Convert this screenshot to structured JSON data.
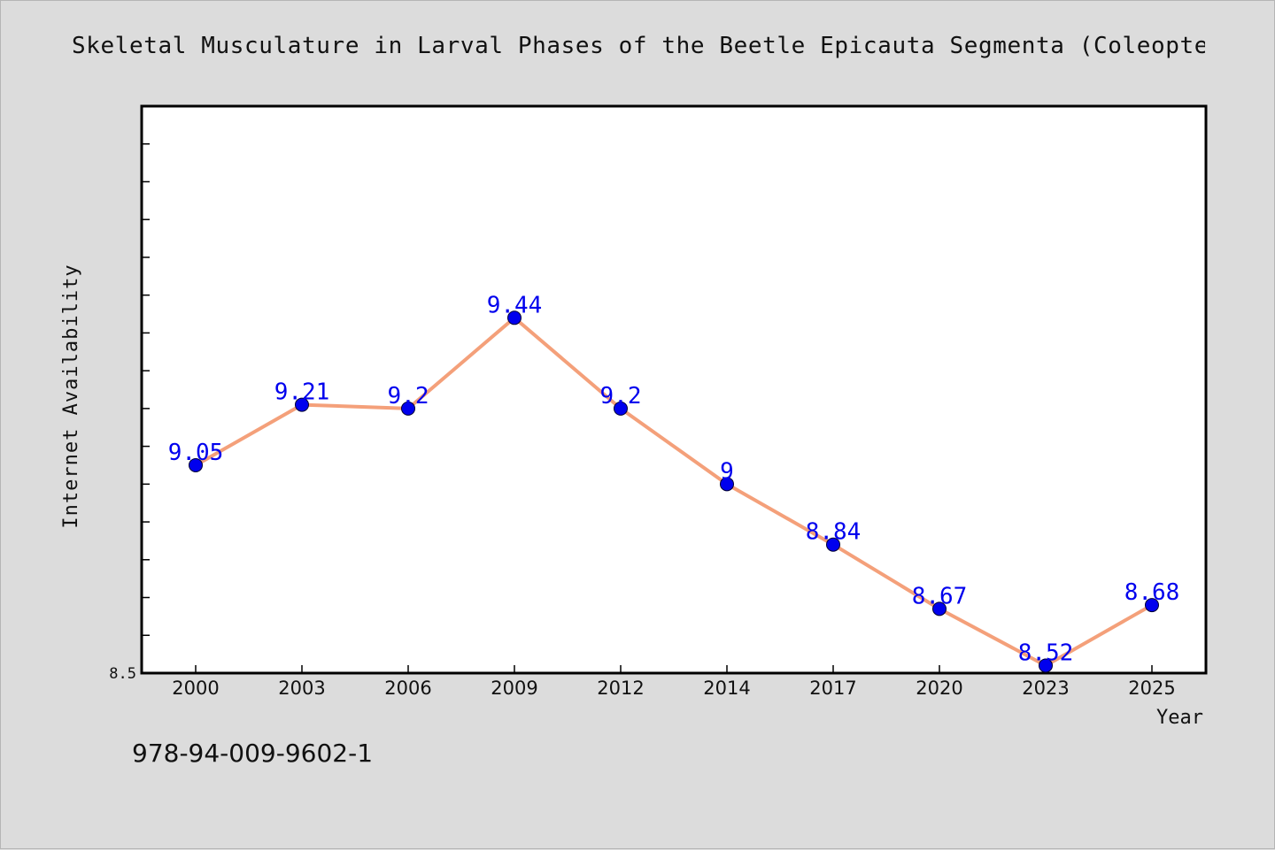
{
  "chart_data": {
    "type": "line",
    "title": "Skeletal Musculature in Larval Phases of the Beetle Epicauta Segmenta (Coleopter",
    "xlabel": "Year",
    "ylabel": "Internet Availability",
    "categories": [
      "2000",
      "2003",
      "2006",
      "2009",
      "2012",
      "2014",
      "2017",
      "2020",
      "2023",
      "2025"
    ],
    "series": [
      {
        "values": [
          9.05,
          9.21,
          9.2,
          9.44,
          9.2,
          9,
          8.84,
          8.67,
          8.52,
          8.68
        ],
        "data_labels": [
          "9.05",
          "9.21",
          "9.2",
          "9.44",
          "9.2",
          "9",
          "8.84",
          "8.67",
          "8.52",
          "8.68"
        ]
      }
    ],
    "ylim": [
      8.5,
      10.0
    ],
    "y_tick_labels": [
      "8.5"
    ],
    "grid": false,
    "line_color": "#f4a07a",
    "marker_color": "#0000ee",
    "label_color": "#0000ee"
  },
  "footer": {
    "isbn": "978-94-009-9602-1"
  }
}
